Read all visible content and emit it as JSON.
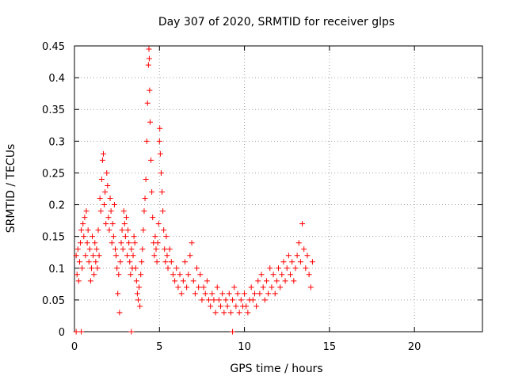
{
  "chart_data": {
    "type": "scatter",
    "title": "Day 307 of 2020, SRMTID for receiver glps",
    "xlabel": "GPS time / hours",
    "ylabel": "SRMTID / TECUs",
    "xlim": [
      0,
      24
    ],
    "ylim": [
      0,
      0.45
    ],
    "xticks": [
      0,
      5,
      10,
      15,
      20
    ],
    "xtick_labels": [
      "0",
      "5",
      "10",
      "15",
      "20"
    ],
    "yticks": [
      0,
      0.05,
      0.1,
      0.15,
      0.2,
      0.25,
      0.3,
      0.35,
      0.4,
      0.45
    ],
    "ytick_labels": [
      "0",
      "0.05",
      "0.1",
      "0.15",
      "0.2",
      "0.25",
      "0.3",
      "0.35",
      "0.4",
      "0.45"
    ],
    "grid": true,
    "marker": "plus",
    "color": "#ff0000",
    "series": [
      {
        "name": "SRMTID",
        "points": [
          [
            0.1,
            0.12
          ],
          [
            0.15,
            0.09
          ],
          [
            0.2,
            0.13
          ],
          [
            0.25,
            0.08
          ],
          [
            0.3,
            0.11
          ],
          [
            0.35,
            0.14
          ],
          [
            0.4,
            0.16
          ],
          [
            0.45,
            0.1
          ],
          [
            0.5,
            0.17
          ],
          [
            0.55,
            0.15
          ],
          [
            0.6,
            0.18
          ],
          [
            0.65,
            0.12
          ],
          [
            0.7,
            0.19
          ],
          [
            0.75,
            0.14
          ],
          [
            0.8,
            0.16
          ],
          [
            0.85,
            0.11
          ],
          [
            0.9,
            0.13
          ],
          [
            0.95,
            0.08
          ],
          [
            1.0,
            0.1
          ],
          [
            1.05,
            0.15
          ],
          [
            1.1,
            0.12
          ],
          [
            1.15,
            0.09
          ],
          [
            1.2,
            0.14
          ],
          [
            1.25,
            0.11
          ],
          [
            1.3,
            0.13
          ],
          [
            1.35,
            0.1
          ],
          [
            1.4,
            0.16
          ],
          [
            1.45,
            0.12
          ],
          [
            1.5,
            0.21
          ],
          [
            1.55,
            0.19
          ],
          [
            1.6,
            0.24
          ],
          [
            1.65,
            0.27
          ],
          [
            1.7,
            0.28
          ],
          [
            1.75,
            0.2
          ],
          [
            1.8,
            0.22
          ],
          [
            1.85,
            0.17
          ],
          [
            1.9,
            0.25
          ],
          [
            1.95,
            0.23
          ],
          [
            2.0,
            0.18
          ],
          [
            2.05,
            0.16
          ],
          [
            2.1,
            0.21
          ],
          [
            2.15,
            0.19
          ],
          [
            2.2,
            0.14
          ],
          [
            2.25,
            0.17
          ],
          [
            2.3,
            0.15
          ],
          [
            2.35,
            0.2
          ],
          [
            2.4,
            0.13
          ],
          [
            2.45,
            0.12
          ],
          [
            2.5,
            0.1
          ],
          [
            2.55,
            0.06
          ],
          [
            2.6,
            0.09
          ],
          [
            2.65,
            0.03
          ],
          [
            2.7,
            0.11
          ],
          [
            2.75,
            0.14
          ],
          [
            2.8,
            0.16
          ],
          [
            2.85,
            0.13
          ],
          [
            2.9,
            0.19
          ],
          [
            2.95,
            0.17
          ],
          [
            3.0,
            0.15
          ],
          [
            3.05,
            0.18
          ],
          [
            3.1,
            0.12
          ],
          [
            3.15,
            0.16
          ],
          [
            3.2,
            0.14
          ],
          [
            3.25,
            0.11
          ],
          [
            3.3,
            0.09
          ],
          [
            3.35,
            0.13
          ],
          [
            3.4,
            0.1
          ],
          [
            3.45,
            0.12
          ],
          [
            3.5,
            0.15
          ],
          [
            3.55,
            0.14
          ],
          [
            3.6,
            0.1
          ],
          [
            3.65,
            0.08
          ],
          [
            3.7,
            0.06
          ],
          [
            3.75,
            0.05
          ],
          [
            3.8,
            0.07
          ],
          [
            3.85,
            0.04
          ],
          [
            3.9,
            0.09
          ],
          [
            3.95,
            0.11
          ],
          [
            4.0,
            0.13
          ],
          [
            4.05,
            0.16
          ],
          [
            4.1,
            0.19
          ],
          [
            4.15,
            0.21
          ],
          [
            4.2,
            0.24
          ],
          [
            4.25,
            0.3
          ],
          [
            4.3,
            0.36
          ],
          [
            4.35,
            0.42
          ],
          [
            4.38,
            0.445
          ],
          [
            4.4,
            0.43
          ],
          [
            4.42,
            0.38
          ],
          [
            4.45,
            0.33
          ],
          [
            4.5,
            0.27
          ],
          [
            4.55,
            0.22
          ],
          [
            4.6,
            0.18
          ],
          [
            4.65,
            0.14
          ],
          [
            4.7,
            0.12
          ],
          [
            4.75,
            0.15
          ],
          [
            4.8,
            0.13
          ],
          [
            4.85,
            0.11
          ],
          [
            4.9,
            0.14
          ],
          [
            4.95,
            0.17
          ],
          [
            5.0,
            0.3
          ],
          [
            5.02,
            0.32
          ],
          [
            5.05,
            0.28
          ],
          [
            5.1,
            0.25
          ],
          [
            5.15,
            0.22
          ],
          [
            5.2,
            0.19
          ],
          [
            5.25,
            0.16
          ],
          [
            5.3,
            0.13
          ],
          [
            5.35,
            0.11
          ],
          [
            5.4,
            0.15
          ],
          [
            5.45,
            0.12
          ],
          [
            5.5,
            0.1
          ],
          [
            5.6,
            0.13
          ],
          [
            5.7,
            0.11
          ],
          [
            5.8,
            0.09
          ],
          [
            5.9,
            0.08
          ],
          [
            6.0,
            0.1
          ],
          [
            6.1,
            0.07
          ],
          [
            6.2,
            0.09
          ],
          [
            6.3,
            0.06
          ],
          [
            6.4,
            0.08
          ],
          [
            6.5,
            0.11
          ],
          [
            6.6,
            0.07
          ],
          [
            6.7,
            0.09
          ],
          [
            6.8,
            0.12
          ],
          [
            6.9,
            0.14
          ],
          [
            7.0,
            0.08
          ],
          [
            7.1,
            0.06
          ],
          [
            7.2,
            0.1
          ],
          [
            7.3,
            0.07
          ],
          [
            7.4,
            0.09
          ],
          [
            7.5,
            0.05
          ],
          [
            7.6,
            0.07
          ],
          [
            7.7,
            0.06
          ],
          [
            7.8,
            0.08
          ],
          [
            7.9,
            0.05
          ],
          [
            8.0,
            0.04
          ],
          [
            8.1,
            0.06
          ],
          [
            8.2,
            0.05
          ],
          [
            8.3,
            0.03
          ],
          [
            8.4,
            0.07
          ],
          [
            8.5,
            0.05
          ],
          [
            8.6,
            0.04
          ],
          [
            8.7,
            0.06
          ],
          [
            8.8,
            0.03
          ],
          [
            8.9,
            0.05
          ],
          [
            9.0,
            0.04
          ],
          [
            9.1,
            0.06
          ],
          [
            9.2,
            0.03
          ],
          [
            9.3,
            0.05
          ],
          [
            9.4,
            0.07
          ],
          [
            9.5,
            0.04
          ],
          [
            9.6,
            0.06
          ],
          [
            9.7,
            0.03
          ],
          [
            9.8,
            0.05
          ],
          [
            9.9,
            0.04
          ],
          [
            10.0,
            0.06
          ],
          [
            10.1,
            0.04
          ],
          [
            10.2,
            0.03
          ],
          [
            10.3,
            0.05
          ],
          [
            10.4,
            0.07
          ],
          [
            10.5,
            0.05
          ],
          [
            10.6,
            0.06
          ],
          [
            10.7,
            0.04
          ],
          [
            10.8,
            0.08
          ],
          [
            10.9,
            0.06
          ],
          [
            11.0,
            0.09
          ],
          [
            11.1,
            0.07
          ],
          [
            11.2,
            0.05
          ],
          [
            11.3,
            0.08
          ],
          [
            11.4,
            0.06
          ],
          [
            11.5,
            0.1
          ],
          [
            11.6,
            0.07
          ],
          [
            11.7,
            0.09
          ],
          [
            11.8,
            0.06
          ],
          [
            11.9,
            0.08
          ],
          [
            12.0,
            0.1
          ],
          [
            12.1,
            0.07
          ],
          [
            12.2,
            0.09
          ],
          [
            12.3,
            0.11
          ],
          [
            12.4,
            0.08
          ],
          [
            12.5,
            0.1
          ],
          [
            12.6,
            0.12
          ],
          [
            12.7,
            0.09
          ],
          [
            12.8,
            0.11
          ],
          [
            12.9,
            0.08
          ],
          [
            13.0,
            0.1
          ],
          [
            13.1,
            0.12
          ],
          [
            13.2,
            0.14
          ],
          [
            13.3,
            0.11
          ],
          [
            13.4,
            0.17
          ],
          [
            13.5,
            0.13
          ],
          [
            13.6,
            0.1
          ],
          [
            13.7,
            0.12
          ],
          [
            13.8,
            0.09
          ],
          [
            13.9,
            0.07
          ],
          [
            14.0,
            0.11
          ],
          [
            0.1,
            0.0
          ],
          [
            0.4,
            0.0
          ],
          [
            3.35,
            0.0
          ],
          [
            9.3,
            0.0
          ]
        ]
      }
    ]
  }
}
